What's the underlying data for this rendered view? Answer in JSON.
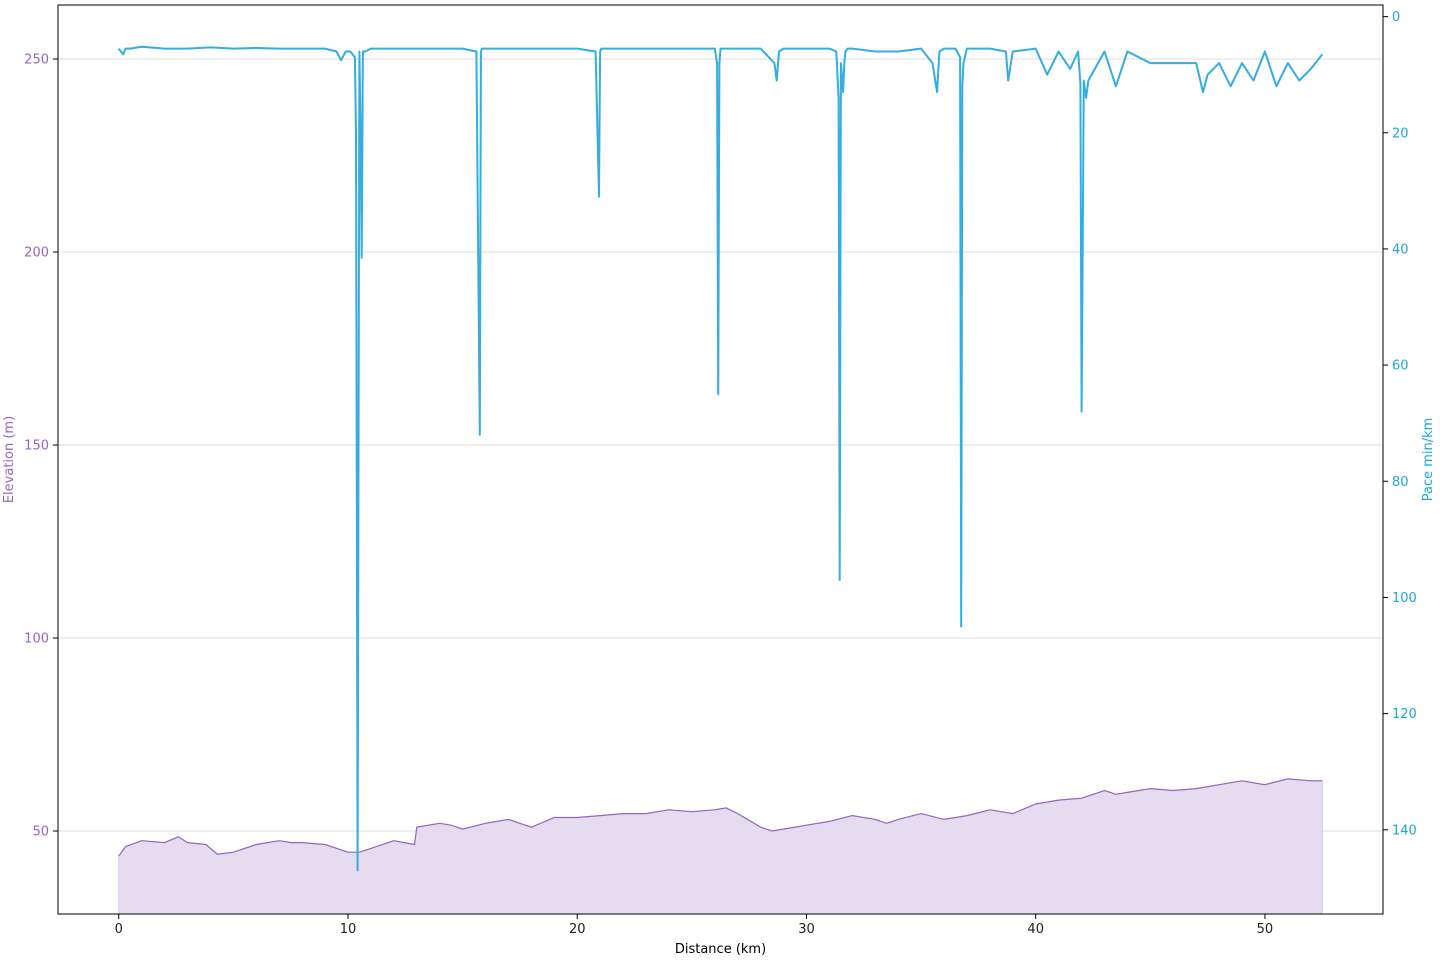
{
  "chart_data": {
    "type": "line",
    "title": "",
    "xlabel": "Distance (km)",
    "ylabel_left": "Elevation (m)",
    "ylabel_right": "Pace min/km",
    "xlim": [
      -2.65,
      55.15
    ],
    "ylim_left": [
      28.5,
      264
    ],
    "ylim_right": [
      154.5,
      -2
    ],
    "right_axis_inverted": true,
    "grid": "horizontal, left axis",
    "legend": "none",
    "x_ticks": [
      "0",
      "10",
      "20",
      "30",
      "40",
      "50"
    ],
    "y_ticks_left": [
      "50",
      "100",
      "150",
      "200",
      "250"
    ],
    "y_ticks_right": [
      "0",
      "20",
      "40",
      "60",
      "80",
      "100",
      "120",
      "140"
    ],
    "colors": {
      "elevation_line": "#9467bd",
      "elevation_fill": "#e6dcf0",
      "pace_line": "#33ade2",
      "grid": "#dddddd",
      "axes": "#000000"
    },
    "series": [
      {
        "axis": "left",
        "style": "line with fill to bottom",
        "x": [
          0,
          0.3,
          1,
          2,
          2.6,
          3,
          3.8,
          4.3,
          5,
          6,
          7,
          7.5,
          8,
          9,
          10,
          10.5,
          11,
          12,
          12.9,
          13,
          14,
          14.5,
          15,
          16,
          17,
          17.5,
          18,
          19,
          20,
          21,
          22,
          23,
          24,
          25,
          26,
          26.5,
          27,
          28,
          28.5,
          29,
          30,
          31,
          32,
          33,
          33.5,
          34,
          35,
          36,
          37,
          38,
          38.5,
          39,
          40,
          41,
          42,
          43,
          43.5,
          44,
          45,
          46,
          47,
          48,
          49,
          50,
          51,
          52,
          52.5
        ],
        "values": [
          43.5,
          46,
          47.5,
          47,
          48.5,
          47,
          46.5,
          44,
          44.5,
          46.5,
          47.5,
          47,
          47,
          46.5,
          44.5,
          44.5,
          45.5,
          47.5,
          46.5,
          51,
          52,
          51.5,
          50.5,
          52,
          53,
          52,
          51,
          53.5,
          53.5,
          54,
          54.5,
          54.5,
          55.5,
          55,
          55.5,
          56,
          54.5,
          51,
          50,
          50.5,
          51.5,
          52.5,
          54,
          53,
          52,
          53,
          54.5,
          53,
          54,
          55.5,
          55,
          54.5,
          57,
          58,
          58.5,
          60.5,
          59.5,
          60,
          61,
          60.5,
          61,
          62,
          63,
          62,
          63.5,
          63,
          63
        ]
      },
      {
        "axis": "right",
        "style": "line",
        "x": [
          0,
          0.1,
          0.2,
          0.3,
          0.5,
          1,
          2,
          3,
          4,
          5,
          6,
          7,
          8,
          9,
          9.5,
          9.7,
          9.9,
          10.1,
          10.3,
          10.35,
          10.42,
          10.5,
          10.55,
          10.6,
          10.65,
          10.7,
          10.75,
          11,
          12,
          13,
          14,
          15,
          15.6,
          15.75,
          15.8,
          15.85,
          16,
          17,
          18,
          19,
          20,
          20.8,
          20.95,
          21,
          21.05,
          21.2,
          22,
          23,
          24,
          25,
          26,
          26.1,
          26.15,
          26.2,
          26.25,
          26.4,
          27,
          28,
          28.6,
          28.7,
          28.8,
          29,
          30,
          31,
          31.3,
          31.4,
          31.45,
          31.5,
          31.6,
          31.65,
          31.7,
          31.8,
          32,
          33,
          34,
          35,
          35.5,
          35.7,
          35.8,
          36,
          36.5,
          36.7,
          36.75,
          36.8,
          36.85,
          37,
          38,
          38.7,
          38.8,
          39,
          40,
          40.5,
          41,
          41.5,
          41.85,
          41.95,
          42,
          42.1,
          42.2,
          42.3,
          43,
          43.5,
          44,
          45,
          46,
          47,
          47.3,
          47.5,
          48,
          48.5,
          49,
          49.5,
          50,
          50.5,
          51,
          51.5,
          52,
          52.5
        ],
        "values": [
          5.5,
          6,
          6.5,
          5.5,
          5.5,
          5.2,
          5.5,
          5.5,
          5.3,
          5.5,
          5.4,
          5.5,
          5.5,
          5.5,
          6,
          7.5,
          6,
          6,
          7,
          20,
          147,
          6,
          20,
          41.5,
          6,
          6,
          6,
          5.5,
          5.5,
          5.5,
          5.5,
          5.5,
          6,
          72,
          6,
          5.5,
          5.5,
          5.5,
          5.5,
          5.5,
          5.5,
          6,
          31,
          6,
          5.5,
          5.5,
          5.5,
          5.5,
          5.5,
          5.5,
          5.5,
          8,
          65,
          8,
          5.5,
          5.5,
          5.5,
          5.5,
          8,
          11,
          6,
          5.5,
          5.5,
          5.5,
          6,
          14,
          97,
          8,
          13,
          8,
          6,
          5.5,
          5.5,
          6,
          6,
          5.5,
          8,
          13,
          6,
          5.5,
          5.5,
          7,
          105,
          12,
          8,
          5.5,
          5.5,
          6,
          11,
          6,
          5.5,
          10,
          6,
          9,
          6,
          11.5,
          68,
          11,
          14,
          11,
          6,
          12,
          6,
          8,
          8,
          8,
          13,
          10,
          8,
          12,
          8,
          11,
          6,
          12,
          8,
          11,
          9,
          6.5
        ]
      }
    ]
  }
}
